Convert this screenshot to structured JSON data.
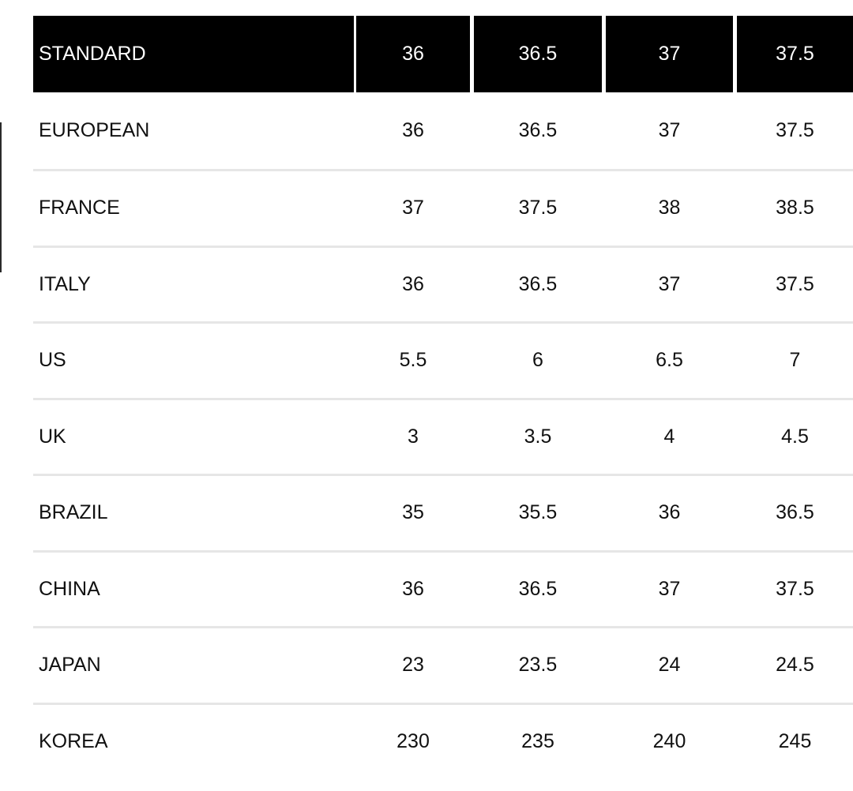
{
  "header": {
    "label": "STANDARD",
    "sizes": [
      "36",
      "36.5",
      "37",
      "37.5"
    ]
  },
  "rows": [
    {
      "label": "EUROPEAN",
      "values": [
        "36",
        "36.5",
        "37",
        "37.5"
      ]
    },
    {
      "label": "FRANCE",
      "values": [
        "37",
        "37.5",
        "38",
        "38.5"
      ]
    },
    {
      "label": "ITALY",
      "values": [
        "36",
        "36.5",
        "37",
        "37.5"
      ]
    },
    {
      "label": "US",
      "values": [
        "5.5",
        "6",
        "6.5",
        "7"
      ]
    },
    {
      "label": "UK",
      "values": [
        "3",
        "3.5",
        "4",
        "4.5"
      ]
    },
    {
      "label": "BRAZIL",
      "values": [
        "35",
        "35.5",
        "36",
        "36.5"
      ]
    },
    {
      "label": "CHINA",
      "values": [
        "36",
        "36.5",
        "37",
        "37.5"
      ]
    },
    {
      "label": "JAPAN",
      "values": [
        "23",
        "23.5",
        "24",
        "24.5"
      ]
    },
    {
      "label": "KOREA",
      "values": [
        "230",
        "235",
        "240",
        "245"
      ]
    }
  ]
}
